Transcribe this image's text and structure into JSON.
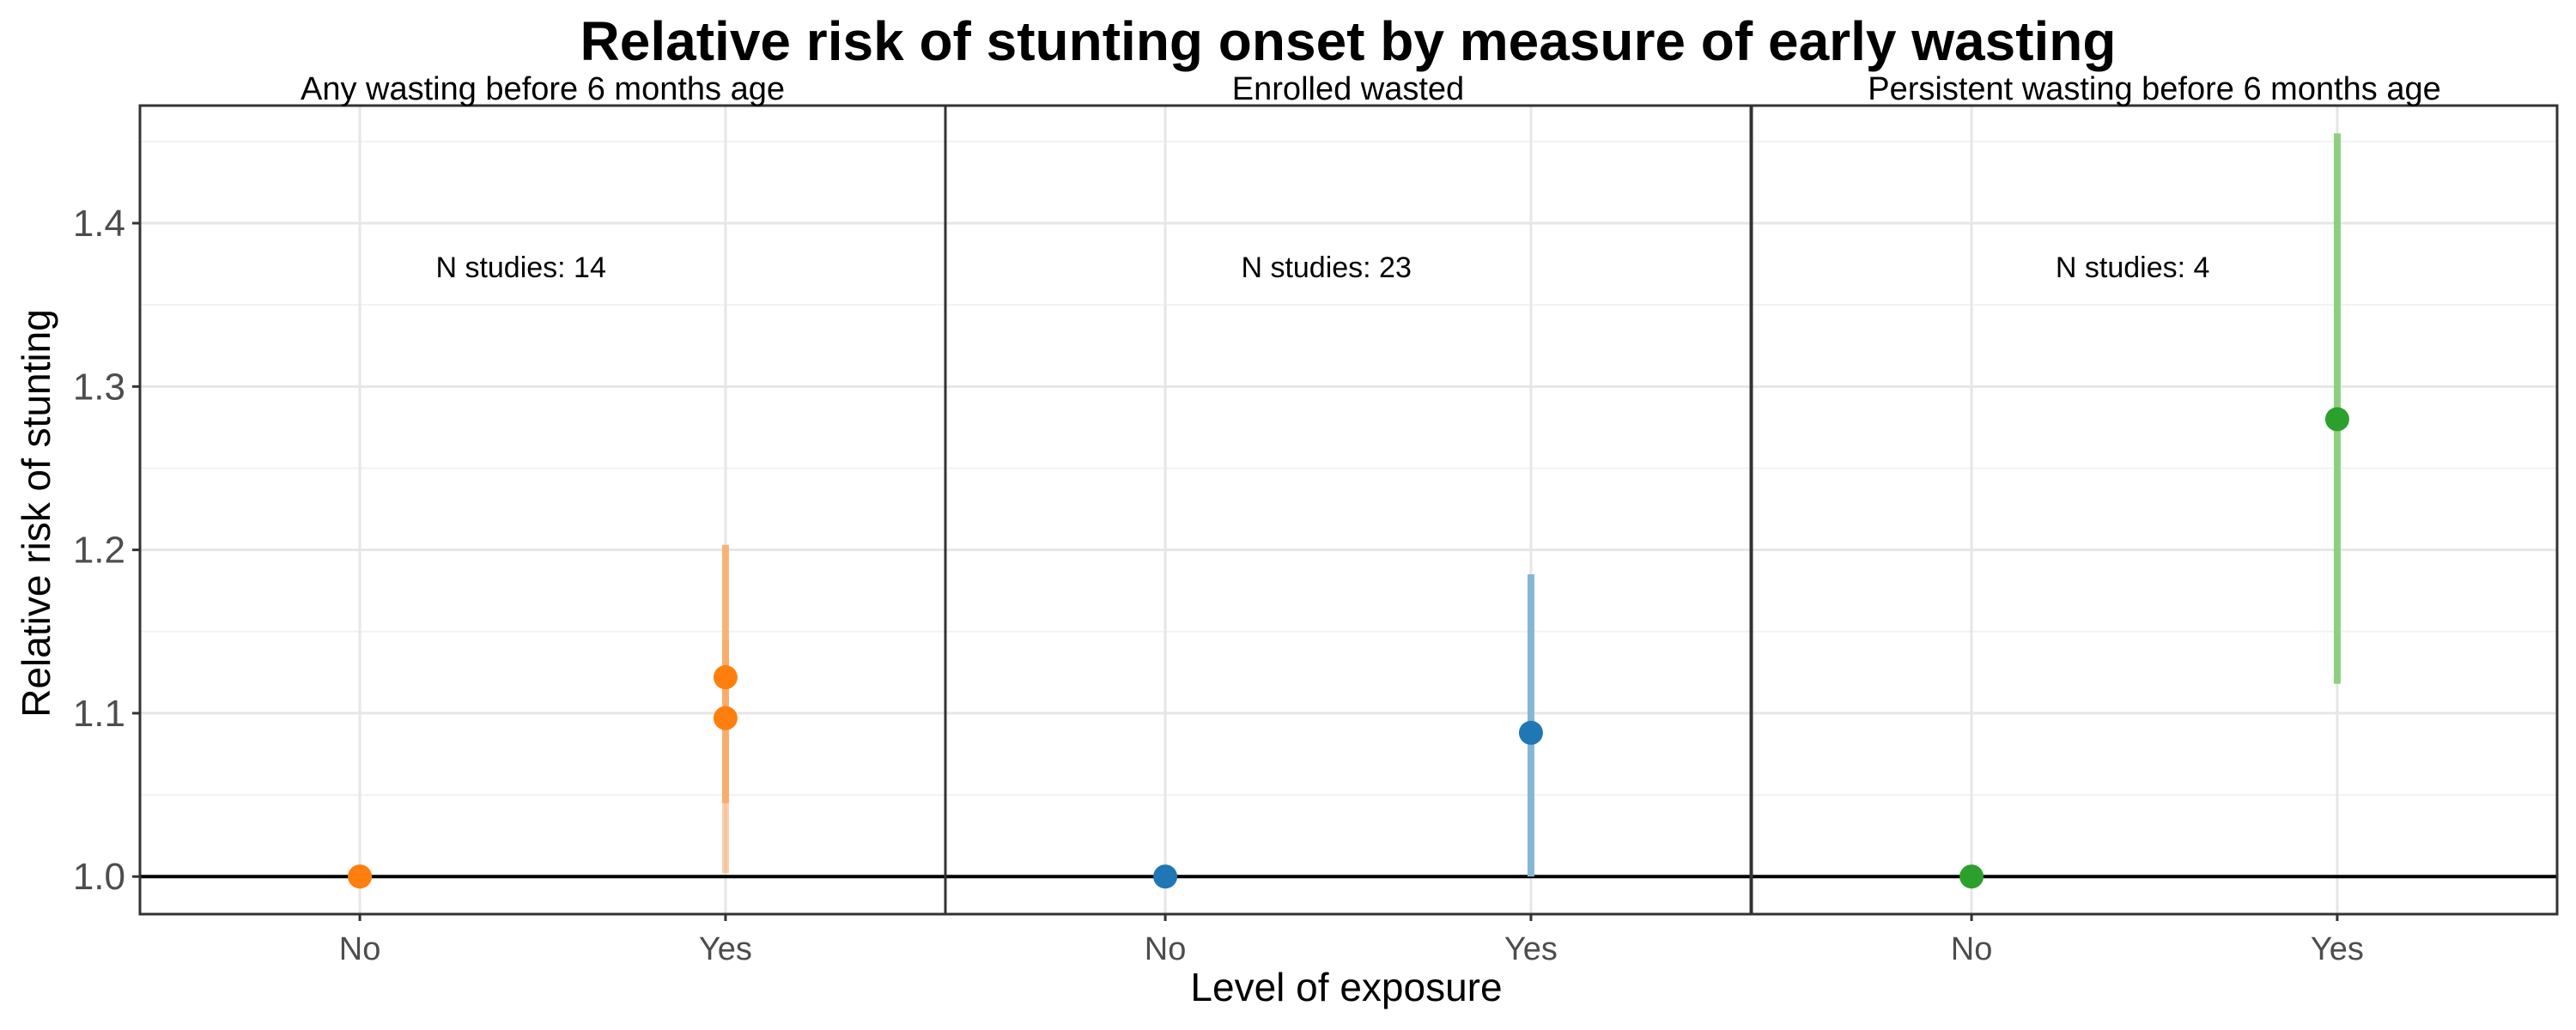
{
  "chart_data": {
    "type": "scatter",
    "title": "Relative risk of stunting onset by measure of early wasting",
    "xlabel": "Level of exposure",
    "ylabel": "Relative risk of stunting",
    "categories": [
      "No",
      "Yes"
    ],
    "ylim": [
      0.977,
      1.472
    ],
    "yticks": [
      "1.0",
      "1.1",
      "1.2",
      "1.3",
      "1.4"
    ],
    "ytick_values": [
      1.0,
      1.1,
      1.2,
      1.3,
      1.4
    ],
    "grid": true,
    "reference_line": 1.0,
    "panels": [
      {
        "title": "Any wasting before 6 months age",
        "annotation": "N studies: 14",
        "color": "#ff7f0e",
        "ci_color": "#f9a760",
        "points": [
          {
            "x": "No",
            "y": 1.0
          },
          {
            "x": "Yes",
            "y": 1.122
          },
          {
            "x": "Yes",
            "y": 1.097
          }
        ],
        "intervals": [
          {
            "x": "Yes",
            "low": 1.045,
            "high": 1.203,
            "opacity": 0.85
          },
          {
            "x": "Yes",
            "low": 1.002,
            "high": 1.145,
            "opacity": 0.55
          }
        ]
      },
      {
        "title": "Enrolled wasted",
        "annotation": "N studies: 23",
        "color": "#1f77b4",
        "ci_color": "#85b6d6",
        "points": [
          {
            "x": "No",
            "y": 1.0
          },
          {
            "x": "Yes",
            "y": 1.088
          }
        ],
        "intervals": [
          {
            "x": "Yes",
            "low": 1.0,
            "high": 1.185,
            "opacity": 1.0
          }
        ]
      },
      {
        "title": "Persistent wasting before 6 months age",
        "annotation": "N studies: 4",
        "color": "#2ca02c",
        "ci_color": "#8cd07f",
        "points": [
          {
            "x": "No",
            "y": 1.0
          },
          {
            "x": "Yes",
            "y": 1.28
          }
        ],
        "intervals": [
          {
            "x": "Yes",
            "low": 1.118,
            "high": 1.455,
            "opacity": 1.0
          }
        ]
      }
    ]
  }
}
